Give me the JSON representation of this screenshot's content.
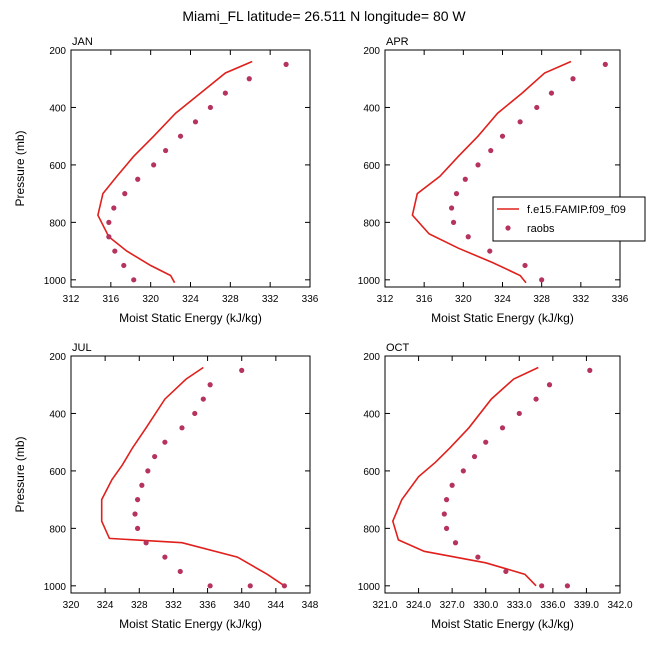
{
  "title": "Miami_FL  latitude= 26.511 N longitude= 80 W",
  "colors": {
    "model_line": "#e0201c",
    "obs_marker": "#b5335c"
  },
  "legend": {
    "model": "f.e15.FAMIP.f09_f09",
    "obs": "raobs"
  },
  "chart_data": [
    {
      "type": "line",
      "panel": "JAN",
      "xlabel": "Moist Static Energy (kJ/kg)",
      "ylabel": "Pressure (mb)",
      "xlim": [
        312,
        336
      ],
      "ylim": [
        200,
        1025
      ],
      "y_inverted": true,
      "xticks": [
        312,
        316,
        320,
        324,
        328,
        332,
        336
      ],
      "xtick_labels": [
        "312",
        "316",
        "320",
        "324",
        "328",
        "332",
        "336"
      ],
      "yticks": [
        200,
        400,
        600,
        800,
        1000
      ],
      "ytick_labels": [
        "200",
        "400",
        "600",
        "800",
        "1000"
      ],
      "series": [
        {
          "kind": "line",
          "x": [
            330.2,
            327.5,
            325.0,
            322.5,
            320.3,
            318.3,
            316.6,
            315.2,
            314.7,
            315.8,
            317.6,
            320.0,
            322.0,
            322.4
          ],
          "y": [
            240,
            280,
            350,
            420,
            500,
            570,
            640,
            700,
            775,
            850,
            900,
            950,
            985,
            1010
          ]
        },
        {
          "kind": "scatter",
          "x": [
            333.6,
            329.9,
            327.5,
            326.0,
            324.5,
            323.0,
            321.5,
            320.3,
            318.7,
            317.4,
            316.3,
            315.8,
            315.8,
            316.4,
            317.3,
            318.3
          ],
          "y": [
            250,
            300,
            350,
            400,
            450,
            500,
            550,
            600,
            650,
            700,
            750,
            800,
            850,
            900,
            950,
            1000
          ]
        }
      ]
    },
    {
      "type": "line",
      "panel": "APR",
      "xlabel": "Moist Static Energy (kJ/kg)",
      "ylabel": "",
      "xlim": [
        312,
        336
      ],
      "ylim": [
        200,
        1025
      ],
      "y_inverted": true,
      "legend_position": "right",
      "xticks": [
        312,
        316,
        320,
        324,
        328,
        332,
        336
      ],
      "xtick_labels": [
        "312",
        "316",
        "320",
        "324",
        "328",
        "332",
        "336"
      ],
      "yticks": [
        200,
        400,
        600,
        800,
        1000
      ],
      "ytick_labels": [
        "200",
        "400",
        "600",
        "800",
        "1000"
      ],
      "series": [
        {
          "kind": "line",
          "x": [
            331.0,
            328.3,
            326.0,
            323.5,
            321.5,
            319.5,
            317.6,
            315.3,
            314.8,
            316.5,
            319.5,
            323.0,
            325.8,
            326.4
          ],
          "y": [
            240,
            280,
            350,
            420,
            500,
            570,
            640,
            700,
            775,
            840,
            890,
            940,
            985,
            1010
          ]
        },
        {
          "kind": "scatter",
          "x": [
            334.5,
            331.2,
            329.0,
            327.5,
            325.8,
            324.0,
            322.8,
            321.5,
            320.2,
            319.3,
            318.8,
            319.0,
            320.5,
            322.7,
            326.3,
            328.0
          ],
          "y": [
            250,
            300,
            350,
            400,
            450,
            500,
            550,
            600,
            650,
            700,
            750,
            800,
            850,
            900,
            950,
            1000
          ]
        }
      ]
    },
    {
      "type": "line",
      "panel": "JUL",
      "xlabel": "Moist Static Energy (kJ/kg)",
      "ylabel": "Pressure (mb)",
      "xlim": [
        320,
        348
      ],
      "ylim": [
        200,
        1025
      ],
      "y_inverted": true,
      "xticks": [
        320,
        324,
        328,
        332,
        336,
        340,
        344,
        348
      ],
      "xtick_labels": [
        "320",
        "324",
        "328",
        "332",
        "336",
        "340",
        "344",
        "348"
      ],
      "yticks": [
        200,
        400,
        600,
        800,
        1000
      ],
      "ytick_labels": [
        "200",
        "400",
        "600",
        "800",
        "1000"
      ],
      "series": [
        {
          "kind": "line",
          "x": [
            335.5,
            333.5,
            331.0,
            328.8,
            327.2,
            326.0,
            324.8,
            323.6,
            323.6,
            324.5,
            333.0,
            339.5,
            343.0,
            345.0
          ],
          "y": [
            240,
            280,
            350,
            450,
            520,
            580,
            630,
            700,
            775,
            835,
            850,
            900,
            960,
            1000
          ]
        },
        {
          "kind": "scatter",
          "x": [
            340.0,
            336.3,
            335.5,
            334.5,
            333.0,
            331.0,
            329.8,
            329.0,
            328.3,
            327.8,
            327.5,
            327.8,
            328.8,
            331.0,
            332.8,
            336.3,
            341.0,
            345.0
          ],
          "y": [
            250,
            300,
            350,
            400,
            450,
            500,
            550,
            600,
            650,
            700,
            750,
            800,
            850,
            900,
            950,
            1000,
            1000,
            1000
          ]
        }
      ]
    },
    {
      "type": "line",
      "panel": "OCT",
      "xlabel": "Moist Static Energy (kJ/kg)",
      "ylabel": "",
      "xlim": [
        321,
        342
      ],
      "ylim": [
        200,
        1025
      ],
      "y_inverted": true,
      "xticks": [
        321,
        324,
        327,
        330,
        333,
        336,
        339,
        342
      ],
      "xtick_labels": [
        "321.0",
        "324.0",
        "327.0",
        "330.0",
        "333.0",
        "336.0",
        "339.0",
        "342.0"
      ],
      "yticks": [
        200,
        400,
        600,
        800,
        1000
      ],
      "ytick_labels": [
        "200",
        "400",
        "600",
        "800",
        "1000"
      ],
      "series": [
        {
          "kind": "line",
          "x": [
            334.7,
            332.5,
            330.5,
            328.5,
            326.8,
            325.5,
            324.0,
            322.5,
            321.7,
            322.2,
            324.5,
            330.0,
            333.5,
            334.5
          ],
          "y": [
            240,
            280,
            350,
            450,
            520,
            570,
            620,
            700,
            775,
            840,
            880,
            920,
            960,
            1000
          ]
        },
        {
          "kind": "scatter",
          "x": [
            339.3,
            335.7,
            334.5,
            333.0,
            331.5,
            330.0,
            329.0,
            328.0,
            327.0,
            326.5,
            326.3,
            326.5,
            327.3,
            329.3,
            331.8,
            335.0,
            337.3
          ],
          "y": [
            250,
            300,
            350,
            400,
            450,
            500,
            550,
            600,
            650,
            700,
            750,
            800,
            850,
            900,
            950,
            1000,
            1000
          ]
        }
      ]
    }
  ]
}
